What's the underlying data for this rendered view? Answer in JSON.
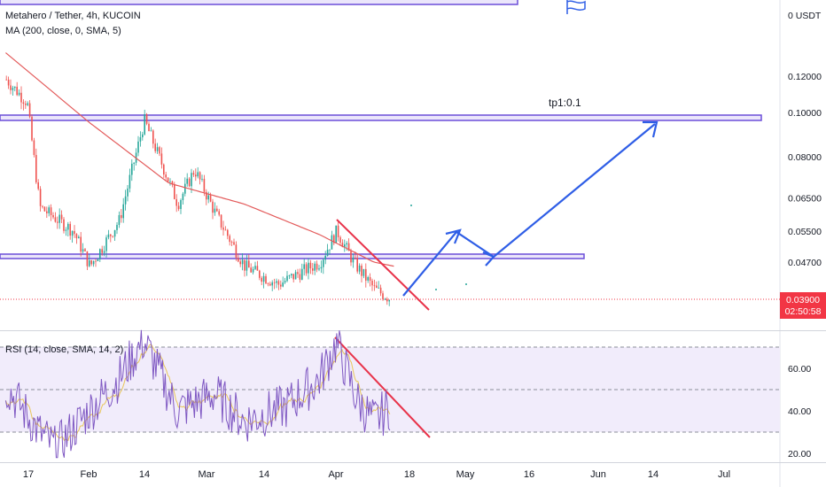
{
  "header": {
    "symbol_line": "Metahero / Tether, 4h, KUCOIN",
    "ma_line": "MA (200, close, 0, SMA, 5)",
    "rsi_line": "RSI (14, close, SMA, 14, 2)",
    "currency": "0 USDT"
  },
  "badge": {
    "price": "0.03900",
    "countdown": "02:50:58",
    "color": "#f23645"
  },
  "annotations": {
    "target_label": "tp1:0.1"
  },
  "colors": {
    "up": "#26a69a",
    "down": "#ef5350",
    "ma": "#e35a5a",
    "zone": "#6b4fd8",
    "arrow": "#2f5ee6",
    "trendline": "#e8334a",
    "rsi": "#7e57c2",
    "rsi_ma": "#e8c65a"
  },
  "chart_data": [
    {
      "type": "candlestick",
      "title": "Metahero / Tether, 4h, KUCOIN",
      "x_ticks": [
        "17",
        "Feb",
        "14",
        "Mar",
        "14",
        "Apr",
        "18",
        "May",
        "16",
        "Jun",
        "14",
        "Jul"
      ],
      "y_ticks": [
        "0.12000",
        "0.10000",
        "0.08000",
        "0.06500",
        "0.05500",
        "0.04700"
      ],
      "y_scale": "log",
      "last_price": "0.03900",
      "price_path_approx": [
        {
          "x": "Jan 12",
          "price": 0.118
        },
        {
          "x": "Jan 17",
          "price": 0.105
        },
        {
          "x": "Jan 20",
          "price": 0.062
        },
        {
          "x": "Jan 28",
          "price": 0.055
        },
        {
          "x": "Feb 1",
          "price": 0.046
        },
        {
          "x": "Feb 8",
          "price": 0.058
        },
        {
          "x": "Feb 14",
          "price": 0.096
        },
        {
          "x": "Feb 17",
          "price": 0.082
        },
        {
          "x": "Feb 22",
          "price": 0.063
        },
        {
          "x": "Feb 26",
          "price": 0.075
        },
        {
          "x": "Mar 3",
          "price": 0.06
        },
        {
          "x": "Mar 10",
          "price": 0.046
        },
        {
          "x": "Mar 18",
          "price": 0.042
        },
        {
          "x": "Mar 28",
          "price": 0.047
        },
        {
          "x": "Apr 1",
          "price": 0.055
        },
        {
          "x": "Apr 5",
          "price": 0.047
        },
        {
          "x": "Apr 10",
          "price": 0.041
        },
        {
          "x": "Apr 14",
          "price": 0.039
        }
      ],
      "moving_average": {
        "name": "MA (200, close, 0, SMA, 5)",
        "points_approx": [
          {
            "x": "Jan 12",
            "value": 0.135
          },
          {
            "x": "Feb 1",
            "value": 0.095
          },
          {
            "x": "Feb 20",
            "value": 0.07
          },
          {
            "x": "Mar 10",
            "value": 0.063
          },
          {
            "x": "Mar 28",
            "value": 0.054
          },
          {
            "x": "Apr 10",
            "value": 0.047
          },
          {
            "x": "Apr 15",
            "value": 0.046
          }
        ]
      },
      "horizontal_zones": [
        {
          "price": 0.097
        },
        {
          "price": 0.0475
        }
      ],
      "projection_path": [
        {
          "x": "Apr 15",
          "price": 0.0395
        },
        {
          "x": "Apr 28",
          "price": 0.0545
        },
        {
          "x": "May 6",
          "price": 0.0475
        },
        {
          "x": "May 13",
          "price": 0.094
        }
      ],
      "descending_trendline": [
        {
          "x": "Apr 1",
          "price": 0.057
        },
        {
          "x": "Apr 17",
          "price": 0.038
        }
      ],
      "target_text": "tp1:0.1"
    },
    {
      "type": "line",
      "title": "RSI (14, close, SMA, 14, 2)",
      "y_ticks": [
        "60.00",
        "40.00",
        "20.00"
      ],
      "hlines": [
        70,
        50,
        30
      ],
      "rsi_path_approx": [
        {
          "x": "Jan 12",
          "value": 52
        },
        {
          "x": "Jan 20",
          "value": 30
        },
        {
          "x": "Jan 24",
          "value": 22
        },
        {
          "x": "Feb 1",
          "value": 40
        },
        {
          "x": "Feb 8",
          "value": 55
        },
        {
          "x": "Feb 14",
          "value": 73
        },
        {
          "x": "Feb 22",
          "value": 40
        },
        {
          "x": "Mar 3",
          "value": 48
        },
        {
          "x": "Mar 10",
          "value": 35
        },
        {
          "x": "Mar 20",
          "value": 42
        },
        {
          "x": "Mar 28",
          "value": 55
        },
        {
          "x": "Apr 1",
          "value": 72
        },
        {
          "x": "Apr 6",
          "value": 45
        },
        {
          "x": "Apr 10",
          "value": 35
        },
        {
          "x": "Apr 14",
          "value": 42
        }
      ],
      "descending_trendline": [
        {
          "x": "Apr 1",
          "value": 74
        },
        {
          "x": "Apr 17",
          "value": 29
        }
      ]
    }
  ]
}
